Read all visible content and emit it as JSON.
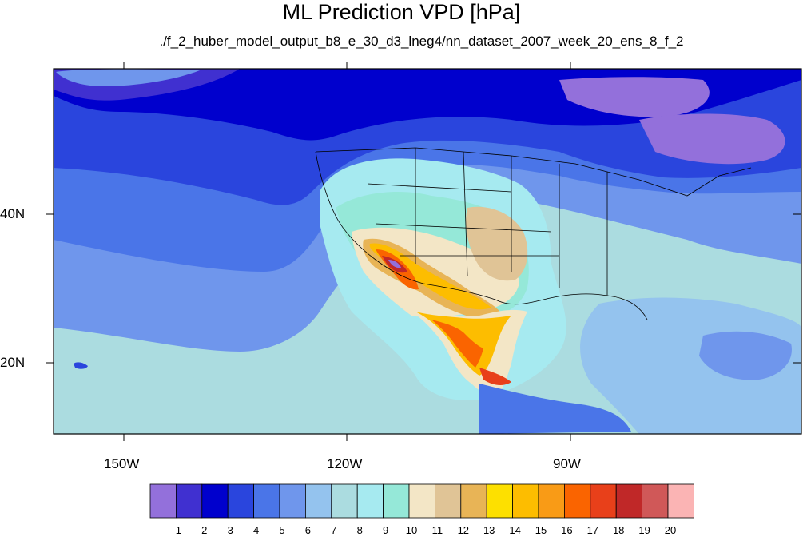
{
  "title": "ML Prediction VPD [hPa]",
  "subtitle": "./f_2_huber_model_output_b8_e_30_d3_lneg4/nn_dataset_2007_week_20_ens_8_f_2",
  "lon_labels": [
    "150W",
    "120W",
    "90W"
  ],
  "lat_labels": [
    "40N",
    "20N"
  ],
  "colorbar": {
    "colors": [
      "#9370db",
      "#4030d0",
      "#0000cd",
      "#2a45dd",
      "#4a75e8",
      "#6f96ec",
      "#94c3ee",
      "#abdce0",
      "#a6eaf0",
      "#95e8d8",
      "#f3e6c6",
      "#e0c496",
      "#e8b456",
      "#fde000",
      "#fdbd00",
      "#f99b16",
      "#fa6400",
      "#e8401a",
      "#c02828",
      "#d05858",
      "#fbb4b4"
    ],
    "labels": [
      "1",
      "2",
      "3",
      "4",
      "5",
      "6",
      "7",
      "8",
      "9",
      "10",
      "11",
      "12",
      "13",
      "14",
      "15",
      "16",
      "17",
      "18",
      "19",
      "20"
    ]
  }
}
